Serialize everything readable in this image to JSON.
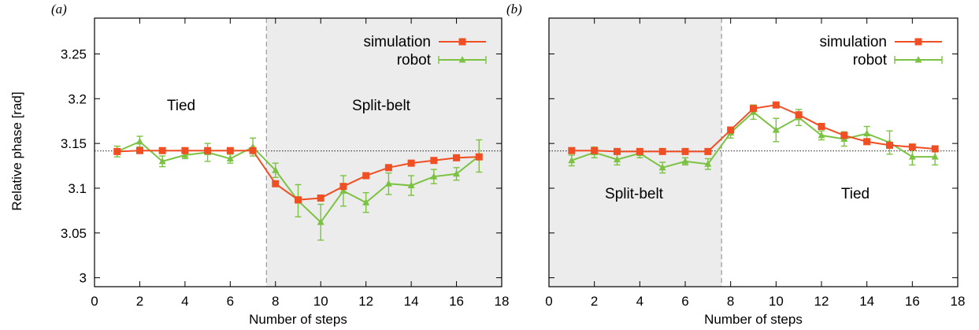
{
  "colors": {
    "simulation": "#f04e23",
    "robot": "#7cc242",
    "shade": "#ececec",
    "reference": "#000000",
    "divider": "#999999"
  },
  "shared": {
    "xlabel": "Number of steps",
    "ylabel": "Relative phase [rad]",
    "xlim": [
      0,
      18
    ],
    "ylim": [
      2.99,
      3.29
    ],
    "xticks": [
      0,
      2,
      4,
      6,
      8,
      10,
      12,
      14,
      16,
      18
    ],
    "yticks": [
      3,
      3.05,
      3.1,
      3.15,
      3.2,
      3.25
    ],
    "ytick_labels": [
      "3",
      "3.05",
      "3.1",
      "3.15",
      "3.2",
      "3.25"
    ],
    "reference_line": 3.1416
  },
  "chart_data": [
    {
      "type": "line",
      "panel": "(a)",
      "x": [
        1,
        2,
        3,
        4,
        5,
        6,
        7,
        8,
        9,
        10,
        11,
        12,
        13,
        14,
        15,
        16,
        17
      ],
      "shaded_region": {
        "x": [
          7.6,
          18
        ],
        "label": "Split-belt"
      },
      "unshaded_label": "Tied",
      "divider_x": 7.6,
      "legend_position": "top-right",
      "series": [
        {
          "name": "simulation",
          "marker": "square",
          "values": [
            3.141,
            3.142,
            3.142,
            3.142,
            3.142,
            3.142,
            3.142,
            3.105,
            3.087,
            3.089,
            3.102,
            3.114,
            3.123,
            3.128,
            3.131,
            3.134,
            3.135
          ],
          "errors": []
        },
        {
          "name": "robot",
          "marker": "triangle",
          "values": [
            3.141,
            3.152,
            3.13,
            3.137,
            3.14,
            3.133,
            3.146,
            3.12,
            3.086,
            3.062,
            3.097,
            3.084,
            3.105,
            3.103,
            3.113,
            3.116,
            3.136
          ],
          "errors": [
            0.006,
            0.006,
            0.006,
            0.004,
            0.01,
            0.005,
            0.01,
            0.008,
            0.018,
            0.02,
            0.017,
            0.011,
            0.012,
            0.011,
            0.008,
            0.007,
            0.018
          ]
        }
      ]
    },
    {
      "type": "line",
      "panel": "(b)",
      "x": [
        1,
        2,
        3,
        4,
        5,
        6,
        7,
        8,
        9,
        10,
        11,
        12,
        13,
        14,
        15,
        16,
        17
      ],
      "shaded_region": {
        "x": [
          0,
          7.6
        ],
        "label": "Split-belt"
      },
      "unshaded_label": "Tied",
      "divider_x": 7.6,
      "legend_position": "top-right",
      "series": [
        {
          "name": "simulation",
          "marker": "square",
          "values": [
            3.142,
            3.142,
            3.141,
            3.141,
            3.141,
            3.141,
            3.141,
            3.165,
            3.189,
            3.193,
            3.182,
            3.169,
            3.159,
            3.152,
            3.148,
            3.146,
            3.144
          ],
          "errors": []
        },
        {
          "name": "robot",
          "marker": "triangle",
          "values": [
            3.131,
            3.14,
            3.132,
            3.139,
            3.123,
            3.13,
            3.127,
            3.162,
            3.185,
            3.165,
            3.179,
            3.159,
            3.155,
            3.161,
            3.151,
            3.135,
            3.135
          ],
          "errors": [
            0.006,
            0.006,
            0.006,
            0.005,
            0.006,
            0.004,
            0.006,
            0.006,
            0.008,
            0.013,
            0.009,
            0.005,
            0.008,
            0.008,
            0.013,
            0.009,
            0.009
          ]
        }
      ]
    }
  ]
}
